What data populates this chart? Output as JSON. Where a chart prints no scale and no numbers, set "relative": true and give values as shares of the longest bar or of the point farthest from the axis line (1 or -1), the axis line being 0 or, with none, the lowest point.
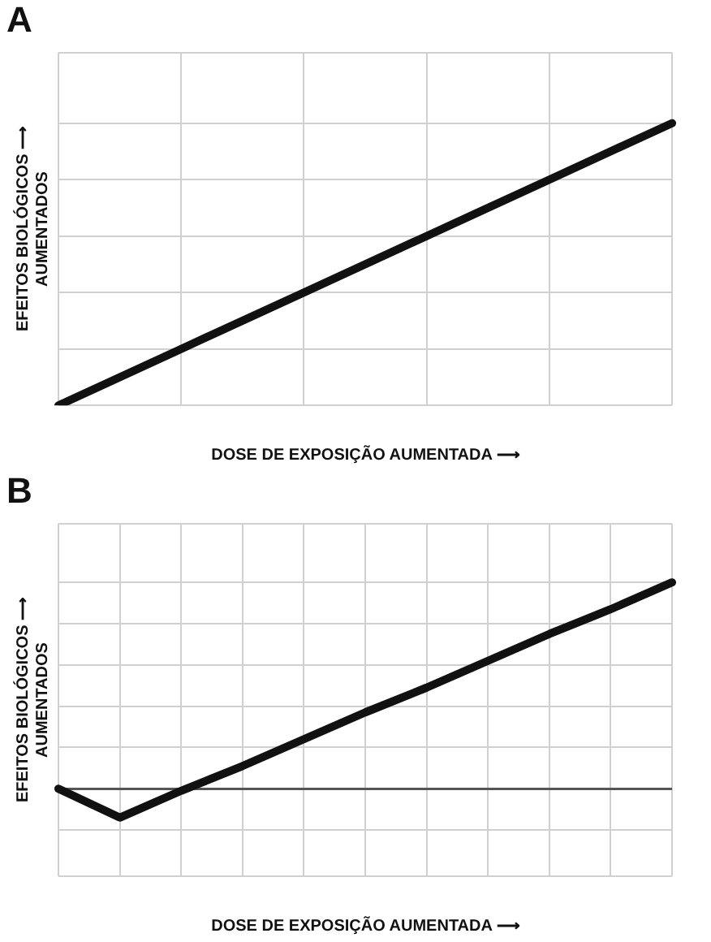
{
  "chart_data": [
    {
      "type": "line",
      "title": "A",
      "xlabel": "DOSE DE EXPOSIÇÃO AUMENTADA ⟶",
      "ylabel": "EFEITOS BIOLÓGICOS ⟶\nAUMENTADOS",
      "relative": true,
      "categories": [
        null,
        null,
        null,
        null,
        null,
        null
      ],
      "series": [
        {
          "color": "#111111",
          "values": [
            0,
            0.2,
            0.4,
            0.6,
            0.8,
            1
          ]
        }
      ],
      "grid": true,
      "legend": false,
      "marker": "none",
      "line_style": "solid"
    },
    {
      "type": "line",
      "title": "B",
      "xlabel": "DOSE DE EXPOSIÇÃO AUMENTADA ⟶",
      "ylabel": "EFEITOS BIOLÓGICOS ⟶\nAUMENTADOS",
      "relative": true,
      "categories": [
        null,
        null,
        null,
        null,
        null,
        null,
        null,
        null,
        null,
        null,
        null
      ],
      "series": [
        {
          "color": "#111111",
          "values": [
            0,
            -0.14,
            -0.01,
            0.11,
            0.24,
            0.37,
            0.49,
            0.62,
            0.75,
            0.87,
            1
          ]
        }
      ],
      "grid": true,
      "legend": false,
      "marker": "none",
      "line_style": "solid"
    }
  ]
}
